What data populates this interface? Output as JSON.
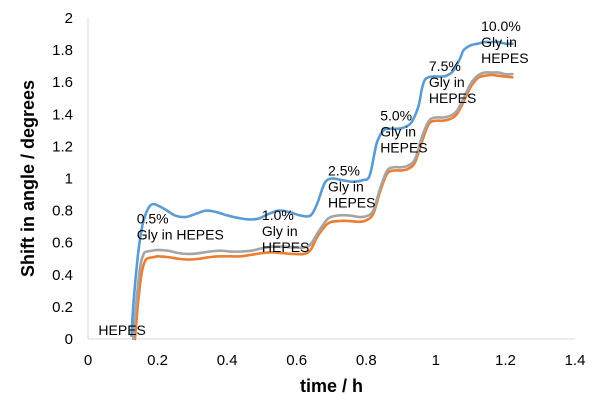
{
  "chart_data": {
    "type": "line",
    "xlabel": "time / h",
    "ylabel": "Shift in angle / degrees",
    "xlim": [
      0,
      1.4
    ],
    "ylim": [
      0,
      2
    ],
    "x_ticks": [
      0,
      0.2,
      0.4,
      0.6,
      0.8,
      1,
      1.2,
      1.4
    ],
    "x_tick_labels": [
      "0",
      "0.2",
      "0.4",
      "0.6",
      "0.8",
      "1",
      "1.2",
      "1.4"
    ],
    "y_ticks": [
      0,
      0.2,
      0.4,
      0.6,
      0.8,
      1,
      1.2,
      1.4,
      1.6,
      1.8,
      2
    ],
    "y_tick_labels": [
      "0",
      "0.2",
      "0.4",
      "0.6",
      "0.8",
      "1",
      "1.2",
      "1.4",
      "1.6",
      "1.8",
      "2"
    ],
    "grid": false,
    "legend": "none",
    "series": [
      {
        "color": "#5B9BD5",
        "x": [
          0.125,
          0.13,
          0.14,
          0.15,
          0.16,
          0.175,
          0.19,
          0.22,
          0.25,
          0.28,
          0.31,
          0.34,
          0.37,
          0.4,
          0.43,
          0.46,
          0.49,
          0.52,
          0.55,
          0.58,
          0.61,
          0.64,
          0.66,
          0.68,
          0.7,
          0.73,
          0.76,
          0.79,
          0.81,
          0.83,
          0.85,
          0.87,
          0.89,
          0.91,
          0.93,
          0.95,
          0.96,
          0.97,
          0.99,
          1.01,
          1.03,
          1.05,
          1.07,
          1.08,
          1.1,
          1.12,
          1.14,
          1.16,
          1.18,
          1.2,
          1.22
        ],
        "y": [
          0.02,
          0.2,
          0.45,
          0.63,
          0.74,
          0.82,
          0.84,
          0.81,
          0.77,
          0.76,
          0.78,
          0.8,
          0.79,
          0.77,
          0.755,
          0.745,
          0.75,
          0.78,
          0.8,
          0.79,
          0.77,
          0.77,
          0.85,
          0.97,
          1.0,
          0.99,
          0.98,
          0.99,
          1.02,
          1.22,
          1.3,
          1.31,
          1.31,
          1.32,
          1.35,
          1.45,
          1.56,
          1.62,
          1.635,
          1.635,
          1.64,
          1.67,
          1.75,
          1.8,
          1.83,
          1.84,
          1.85,
          1.85,
          1.85,
          1.84,
          1.84
        ]
      },
      {
        "color": "#A5A5A5",
        "x": [
          0.13,
          0.14,
          0.15,
          0.16,
          0.17,
          0.185,
          0.2,
          0.23,
          0.26,
          0.29,
          0.32,
          0.35,
          0.38,
          0.41,
          0.44,
          0.47,
          0.5,
          0.53,
          0.56,
          0.59,
          0.62,
          0.64,
          0.66,
          0.69,
          0.72,
          0.75,
          0.78,
          0.8,
          0.82,
          0.84,
          0.86,
          0.88,
          0.9,
          0.92,
          0.94,
          0.96,
          0.98,
          1.0,
          1.02,
          1.04,
          1.06,
          1.08,
          1.1,
          1.12,
          1.14,
          1.16,
          1.18,
          1.2,
          1.22
        ],
        "y": [
          0.0,
          0.25,
          0.45,
          0.53,
          0.545,
          0.55,
          0.555,
          0.55,
          0.535,
          0.53,
          0.535,
          0.545,
          0.55,
          0.545,
          0.545,
          0.55,
          0.565,
          0.575,
          0.575,
          0.57,
          0.57,
          0.59,
          0.66,
          0.75,
          0.77,
          0.77,
          0.76,
          0.765,
          0.8,
          0.94,
          1.05,
          1.07,
          1.07,
          1.08,
          1.12,
          1.26,
          1.36,
          1.38,
          1.38,
          1.39,
          1.42,
          1.5,
          1.59,
          1.64,
          1.66,
          1.66,
          1.66,
          1.65,
          1.65
        ]
      },
      {
        "color": "#ED7D31",
        "x": [
          0.135,
          0.145,
          0.155,
          0.165,
          0.175,
          0.19,
          0.2,
          0.23,
          0.26,
          0.29,
          0.32,
          0.35,
          0.38,
          0.41,
          0.44,
          0.47,
          0.5,
          0.53,
          0.56,
          0.59,
          0.62,
          0.64,
          0.66,
          0.69,
          0.72,
          0.75,
          0.78,
          0.8,
          0.82,
          0.84,
          0.86,
          0.88,
          0.9,
          0.92,
          0.94,
          0.96,
          0.98,
          1.0,
          1.02,
          1.04,
          1.06,
          1.08,
          1.1,
          1.12,
          1.14,
          1.16,
          1.18,
          1.2,
          1.22
        ],
        "y": [
          0.0,
          0.25,
          0.42,
          0.49,
          0.505,
          0.51,
          0.515,
          0.51,
          0.5,
          0.495,
          0.5,
          0.51,
          0.515,
          0.515,
          0.515,
          0.525,
          0.535,
          0.54,
          0.535,
          0.53,
          0.53,
          0.555,
          0.64,
          0.72,
          0.735,
          0.735,
          0.73,
          0.74,
          0.78,
          0.92,
          1.03,
          1.05,
          1.05,
          1.06,
          1.1,
          1.23,
          1.34,
          1.36,
          1.36,
          1.37,
          1.4,
          1.48,
          1.57,
          1.625,
          1.64,
          1.645,
          1.64,
          1.635,
          1.63
        ]
      }
    ],
    "annotations": [
      {
        "lines": [
          "HEPES"
        ],
        "x": 0.03,
        "y": 0.025
      },
      {
        "lines": [
          "0.5%",
          "Gly in HEPES"
        ],
        "x": 0.14,
        "y": 0.72
      },
      {
        "lines": [
          "1.0%",
          "Gly in",
          "HEPES"
        ],
        "x": 0.5,
        "y": 0.74
      },
      {
        "lines": [
          "2.5%",
          "Gly in",
          "HEPES"
        ],
        "x": 0.69,
        "y": 1.02
      },
      {
        "lines": [
          "5.0%",
          "Gly in",
          "HEPES"
        ],
        "x": 0.84,
        "y": 1.36
      },
      {
        "lines": [
          "7.5%",
          "Gly in",
          "HEPES"
        ],
        "x": 0.98,
        "y": 1.67
      },
      {
        "lines": [
          "10.0%",
          "Gly in",
          "HEPES"
        ],
        "x": 1.13,
        "y": 1.92
      }
    ]
  }
}
